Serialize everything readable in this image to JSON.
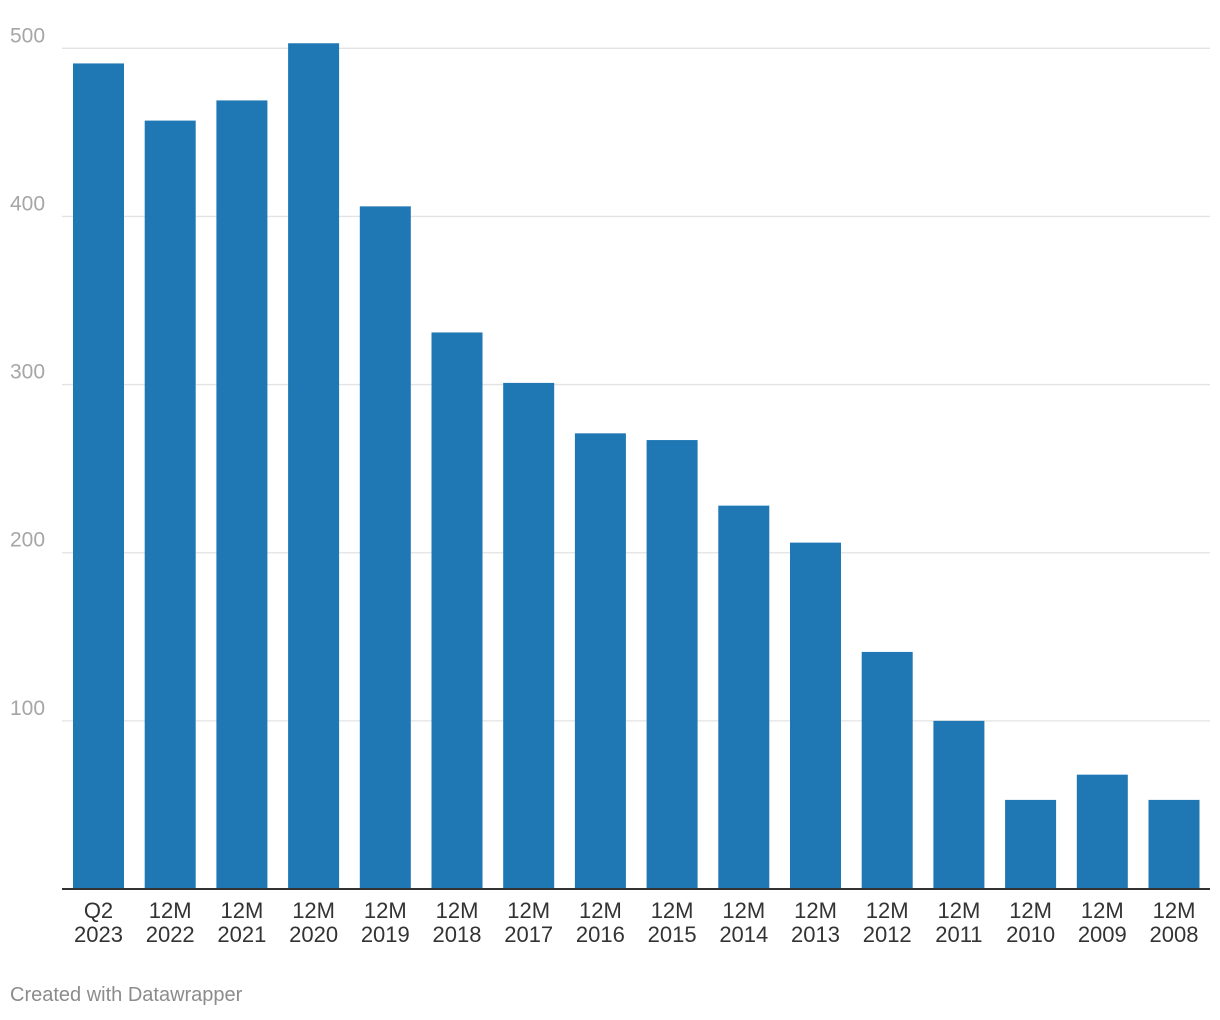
{
  "chart_data": {
    "type": "bar",
    "categories": [
      [
        "Q2",
        "2023"
      ],
      [
        "12M",
        "2022"
      ],
      [
        "12M",
        "2021"
      ],
      [
        "12M",
        "2020"
      ],
      [
        "12M",
        "2019"
      ],
      [
        "12M",
        "2018"
      ],
      [
        "12M",
        "2017"
      ],
      [
        "12M",
        "2016"
      ],
      [
        "12M",
        "2015"
      ],
      [
        "12M",
        "2014"
      ],
      [
        "12M",
        "2013"
      ],
      [
        "12M",
        "2012"
      ],
      [
        "12M",
        "2011"
      ],
      [
        "12M",
        "2010"
      ],
      [
        "12M",
        "2009"
      ],
      [
        "12M",
        "2008"
      ]
    ],
    "values": [
      491,
      457,
      469,
      503,
      406,
      331,
      301,
      271,
      267,
      228,
      206,
      141,
      100,
      53,
      68,
      53
    ],
    "ylim": [
      0,
      500
    ],
    "yticks": [
      100,
      200,
      300,
      400,
      500
    ],
    "grid": true,
    "bar_color": "#1f77b4"
  },
  "footer": {
    "credit": "Created with Datawrapper"
  }
}
